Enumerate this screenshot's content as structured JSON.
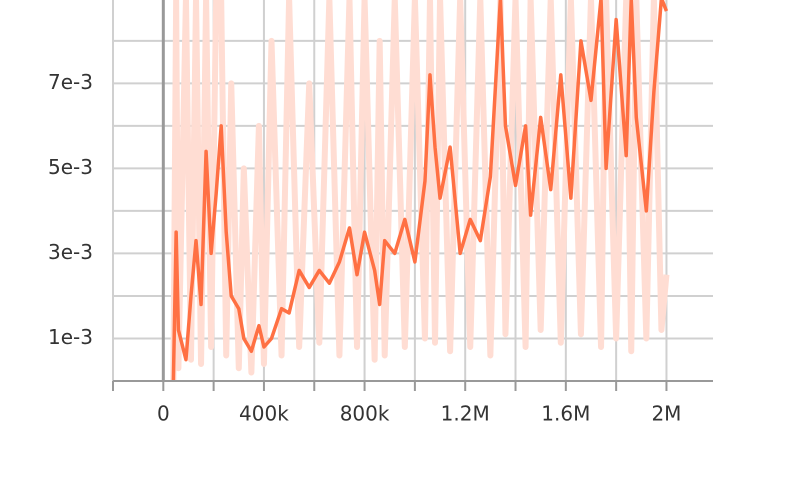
{
  "chart_data": {
    "type": "line",
    "x": [
      40000,
      51000,
      60000,
      90000,
      110000,
      130000,
      150000,
      170000,
      190000,
      210000,
      230000,
      250000,
      270000,
      300000,
      320000,
      350000,
      380000,
      400000,
      430000,
      470000,
      500000,
      540000,
      580000,
      620000,
      660000,
      700000,
      740000,
      770000,
      800000,
      840000,
      860000,
      880000,
      920000,
      960000,
      1000000,
      1040000,
      1060000,
      1080000,
      1100000,
      1140000,
      1180000,
      1220000,
      1260000,
      1300000,
      1340000,
      1360000,
      1400000,
      1440000,
      1460000,
      1500000,
      1540000,
      1580000,
      1620000,
      1660000,
      1700000,
      1740000,
      1760000,
      1800000,
      1840000,
      1860000,
      1880000,
      1920000,
      1950000,
      1980000,
      2000000
    ],
    "series": [
      {
        "color": "#ffddd3",
        "values": [
          0,
          0.009,
          0.0003,
          0.009,
          0.0005,
          0.009,
          0.0004,
          0.009,
          0.0008,
          0.009,
          0.009,
          0.0006,
          0.007,
          0.0003,
          0.005,
          0.0002,
          0.006,
          0.0004,
          0.008,
          0.0006,
          0.009,
          0.0008,
          0.007,
          0.0009,
          0.009,
          0.0006,
          0.009,
          0.0008,
          0.009,
          0.0005,
          0.008,
          0.0006,
          0.009,
          0.0008,
          0.009,
          0.001,
          0.009,
          0.0009,
          0.009,
          0.0007,
          0.009,
          0.0008,
          0.009,
          0.0006,
          0.009,
          0.0011,
          0.009,
          0.0008,
          0.009,
          0.0012,
          0.009,
          0.0009,
          0.009,
          0.0011,
          0.009,
          0.0008,
          0.009,
          0.001,
          0.009,
          0.0007,
          0.009,
          0.001,
          0.009,
          0.0012,
          0.0025
        ]
      },
      {
        "color": "#ff7043",
        "values": [
          0,
          0.0035,
          0.0012,
          0.0005,
          0.002,
          0.0033,
          0.0018,
          0.0054,
          0.003,
          0.0044,
          0.006,
          0.0035,
          0.002,
          0.0017,
          0.001,
          0.0007,
          0.0013,
          0.0008,
          0.001,
          0.0017,
          0.0016,
          0.0026,
          0.0022,
          0.0026,
          0.0023,
          0.0028,
          0.0036,
          0.0025,
          0.0035,
          0.0026,
          0.0018,
          0.0033,
          0.003,
          0.0038,
          0.0028,
          0.0047,
          0.0072,
          0.0055,
          0.0043,
          0.0055,
          0.003,
          0.0038,
          0.0033,
          0.0048,
          0.009,
          0.006,
          0.0046,
          0.006,
          0.0039,
          0.0062,
          0.0045,
          0.0072,
          0.0043,
          0.008,
          0.0066,
          0.009,
          0.005,
          0.0085,
          0.0053,
          0.009,
          0.0062,
          0.004,
          0.0068,
          0.009,
          0.0087
        ]
      }
    ],
    "xlim": [
      -200000,
      2185000
    ],
    "xticks": [
      0,
      {
        "value": 400000,
        "label": "400k"
      },
      {
        "value": 800000,
        "label": "800k"
      },
      {
        "value": 1200000,
        "label": "1.2M"
      },
      {
        "value": 1600000,
        "label": "1.6M"
      },
      {
        "value": 2000000,
        "label": "2M"
      }
    ],
    "xgrid_minor": [
      -200000,
      200000,
      600000,
      1000000,
      1400000,
      1800000
    ],
    "ylim": [
      0,
      0.00896
    ],
    "yticks": [
      {
        "value": 0.001,
        "label": "1e-3"
      },
      {
        "value": 0.003,
        "label": "3e-3"
      },
      {
        "value": 0.005,
        "label": "5e-3"
      },
      {
        "value": 0.007,
        "label": "7e-3"
      }
    ],
    "ygrid_minor": [
      0,
      0.002,
      0.004,
      0.006,
      0.008
    ],
    "grid": true
  }
}
